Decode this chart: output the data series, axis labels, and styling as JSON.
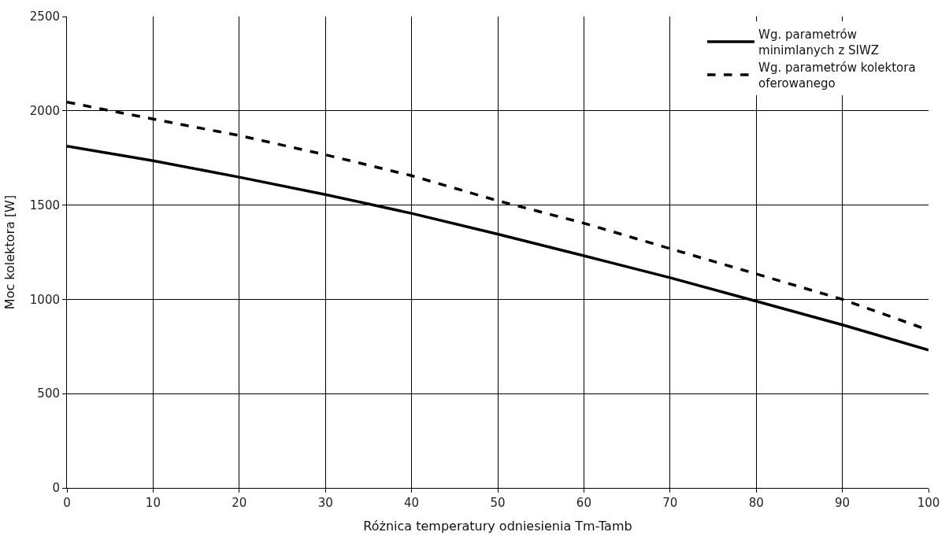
{
  "chart_data": {
    "type": "line",
    "xlabel": "Różnica temperatury odniesienia Tm-Tamb",
    "ylabel": "Moc kolektora [W]",
    "x": [
      0,
      10,
      20,
      30,
      40,
      50,
      60,
      70,
      80,
      90,
      100
    ],
    "series": [
      {
        "name": "Wg. parametrów\nminimlanych z SIWZ",
        "color": "#000000",
        "line_style": "solid",
        "values": [
          1812,
          1735,
          1648,
          1556,
          1456,
          1346,
          1231,
          1115,
          990,
          865,
          731
        ]
      },
      {
        "name": "Wg. parametrów kolektora\noferowanego",
        "color": "#000000",
        "line_style": "dashed",
        "values": [
          2046,
          1956,
          1869,
          1767,
          1656,
          1523,
          1404,
          1269,
          1135,
          1000,
          837
        ]
      }
    ],
    "xlim": [
      0,
      100
    ],
    "xticks": [
      0,
      10,
      20,
      30,
      40,
      50,
      60,
      70,
      80,
      90,
      100
    ],
    "ylim": [
      0,
      2500
    ],
    "yticks": [
      0,
      500,
      1000,
      1500,
      2000,
      2500
    ],
    "grid": true,
    "legend": "top right",
    "marker": "none"
  }
}
